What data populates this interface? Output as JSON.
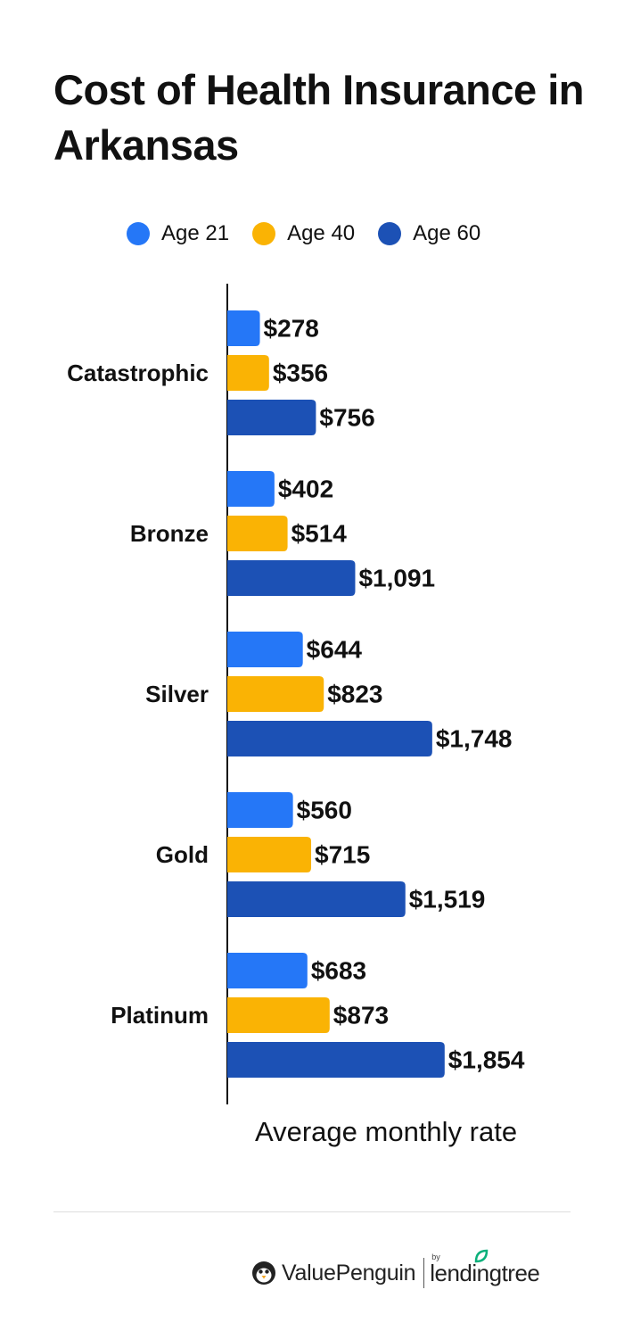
{
  "title": "Cost of Health Insurance in Arkansas",
  "chart_data": {
    "type": "bar",
    "orientation": "horizontal",
    "title": "Cost of Health Insurance in Arkansas",
    "xlabel": "Average monthly rate",
    "ylabel": "",
    "xlim": [
      0,
      2000
    ],
    "grid": false,
    "legend_placement": "top",
    "categories": [
      "Catastrophic",
      "Bronze",
      "Silver",
      "Gold",
      "Platinum"
    ],
    "series": [
      {
        "name": "Age 21",
        "color": "#2577f7",
        "values": [
          278,
          402,
          644,
          560,
          683
        ],
        "labels": [
          "$278",
          "$402",
          "$644",
          "$560",
          "$683"
        ]
      },
      {
        "name": "Age 40",
        "color": "#fab304",
        "values": [
          356,
          514,
          823,
          715,
          873
        ],
        "labels": [
          "$356",
          "$514",
          "$823",
          "$715",
          "$873"
        ]
      },
      {
        "name": "Age 60",
        "color": "#1c51b5",
        "values": [
          756,
          1091,
          1748,
          1519,
          1854
        ],
        "labels": [
          "$756",
          "$1,091",
          "$1,748",
          "$1,519",
          "$1,854"
        ]
      }
    ]
  },
  "footer": {
    "brand_primary": "ValuePenguin",
    "brand_by": "by",
    "brand_secondary": "lendingtree",
    "colors": {
      "leaf": "#0bb07b",
      "text": "#222222"
    }
  }
}
